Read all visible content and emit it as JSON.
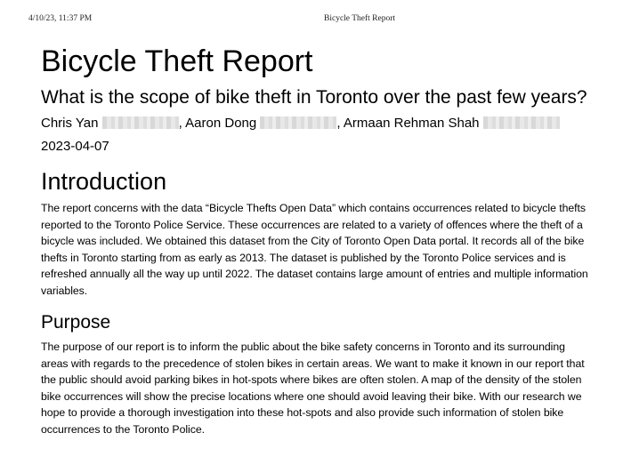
{
  "print_header": {
    "timestamp": "4/10/23, 11:37 PM",
    "doc_title": "Bicycle Theft Report"
  },
  "document": {
    "title": "Bicycle Theft Report",
    "subtitle": "What is the scope of bike theft in Toronto over the past few years?",
    "authors": [
      {
        "name": "Chris Yan",
        "separator": ", "
      },
      {
        "name": "Aaron Dong",
        "separator": ", "
      },
      {
        "name": "Armaan Rehman Shah",
        "separator": ""
      }
    ],
    "date": "2023-04-07",
    "sections": {
      "introduction": {
        "heading": "Introduction",
        "text": "The report concerns with the data “Bicycle Thefts Open Data” which contains occurrences related to bicycle thefts reported to the Toronto Police Service. These occurrences are related to a variety of offences where the theft of a bicycle was included. We obtained this dataset from the City of Toronto Open Data portal. It records all of the bike thefts in Toronto starting from as early as 2013. The dataset is published by the Toronto Police services and is refreshed annually all the way up until 2022. The dataset contains large amount of entries and multiple information variables."
      },
      "purpose": {
        "heading": "Purpose",
        "text": "The purpose of our report is to inform the public about the bike safety concerns in Toronto and its surrounding areas with regards to the precedence of stolen bikes in certain areas. We want to make it known in our report that the public should avoid parking bikes in hot-spots where bikes are often stolen. A map of the density of the stolen bike occurrences will show the precise locations where one should avoid leaving their bike. With our research we hope to provide a thorough investigation into these hot-spots and also provide such information of stolen bike occurrences to the Toronto Police."
      }
    }
  }
}
